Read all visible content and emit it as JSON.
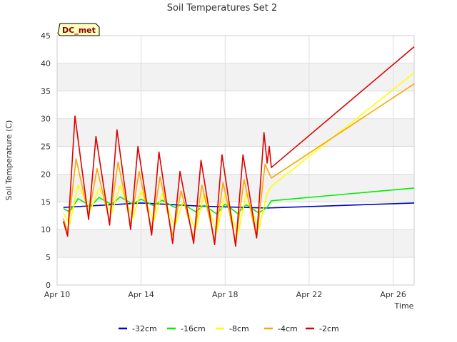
{
  "chart_data": {
    "type": "line",
    "title": "Soil Temperatures Set 2",
    "xlabel": "Time",
    "ylabel": "Soil Temperature (C)",
    "badge": "DC_met",
    "xlim": [
      0,
      17
    ],
    "ylim": [
      0,
      45
    ],
    "yticks": [
      0,
      5,
      10,
      15,
      20,
      25,
      30,
      35,
      40,
      45
    ],
    "xticks": [
      {
        "value": 0,
        "label": "Apr 10"
      },
      {
        "value": 4,
        "label": "Apr 14"
      },
      {
        "value": 8,
        "label": "Apr 18"
      },
      {
        "value": 12,
        "label": "Apr 22"
      },
      {
        "value": 16,
        "label": "Apr 26"
      }
    ],
    "series": [
      {
        "name": "-32cm",
        "color": "#0000cc",
        "x": [
          0.3,
          4.0,
          7.0,
          10.0,
          17.0
        ],
        "y": [
          14.0,
          14.8,
          14.2,
          13.9,
          14.8
        ]
      },
      {
        "name": "-16cm",
        "color": "#00ee00",
        "x": [
          0.3,
          0.6,
          1.0,
          1.6,
          2.0,
          2.6,
          3.0,
          3.6,
          4.0,
          4.6,
          5.0,
          5.6,
          6.0,
          6.6,
          7.0,
          7.6,
          8.0,
          8.6,
          9.0,
          9.6,
          10.0,
          10.2,
          17.0
        ],
        "y": [
          13.8,
          13.2,
          15.6,
          14.2,
          15.8,
          14.5,
          15.9,
          14.6,
          15.5,
          14.3,
          15.3,
          14.0,
          14.6,
          13.2,
          14.4,
          12.8,
          14.6,
          12.9,
          14.5,
          13.0,
          14.0,
          15.2,
          17.5
        ]
      },
      {
        "name": "-8cm",
        "color": "#ffff00",
        "x": [
          0.3,
          0.6,
          1.0,
          1.6,
          2.0,
          2.6,
          3.0,
          3.6,
          4.0,
          4.6,
          5.0,
          5.6,
          6.0,
          6.6,
          7.0,
          7.6,
          8.0,
          8.6,
          9.0,
          9.6,
          10.0,
          10.2,
          17.0
        ],
        "y": [
          13.0,
          11.0,
          18.0,
          13.5,
          17.5,
          13.0,
          18.0,
          12.0,
          17.0,
          11.5,
          16.5,
          10.5,
          15.0,
          10.0,
          16.5,
          9.5,
          16.5,
          9.0,
          16.5,
          10.0,
          16.5,
          17.8,
          38.3
        ]
      },
      {
        "name": "-4cm",
        "color": "#ffa500",
        "x": [
          0.3,
          0.5,
          0.9,
          1.5,
          1.9,
          2.5,
          2.9,
          3.5,
          3.9,
          4.5,
          4.9,
          5.5,
          5.9,
          6.5,
          6.9,
          7.5,
          7.9,
          8.5,
          8.9,
          9.5,
          9.9,
          10.2,
          17.0
        ],
        "y": [
          12.0,
          9.5,
          22.8,
          12.5,
          21.0,
          11.5,
          22.2,
          10.8,
          20.5,
          10.0,
          19.5,
          8.8,
          17.0,
          8.5,
          18.0,
          8.0,
          18.5,
          7.8,
          19.0,
          8.5,
          21.8,
          19.3,
          36.3
        ]
      },
      {
        "name": "-2cm",
        "color": "#dd0000",
        "x": [
          0.3,
          0.5,
          0.85,
          1.5,
          1.85,
          2.5,
          2.85,
          3.5,
          3.85,
          4.5,
          4.85,
          5.5,
          5.85,
          6.5,
          6.85,
          7.5,
          7.85,
          8.5,
          8.85,
          9.5,
          9.85,
          10.0,
          10.1,
          10.2,
          17.0
        ],
        "y": [
          11.5,
          8.8,
          30.5,
          11.8,
          26.8,
          10.8,
          28.0,
          10.0,
          25.0,
          9.0,
          24.0,
          7.5,
          20.5,
          7.5,
          22.5,
          7.3,
          23.5,
          7.0,
          23.5,
          8.5,
          27.5,
          22.0,
          25.0,
          21.2,
          43.0
        ]
      }
    ]
  }
}
